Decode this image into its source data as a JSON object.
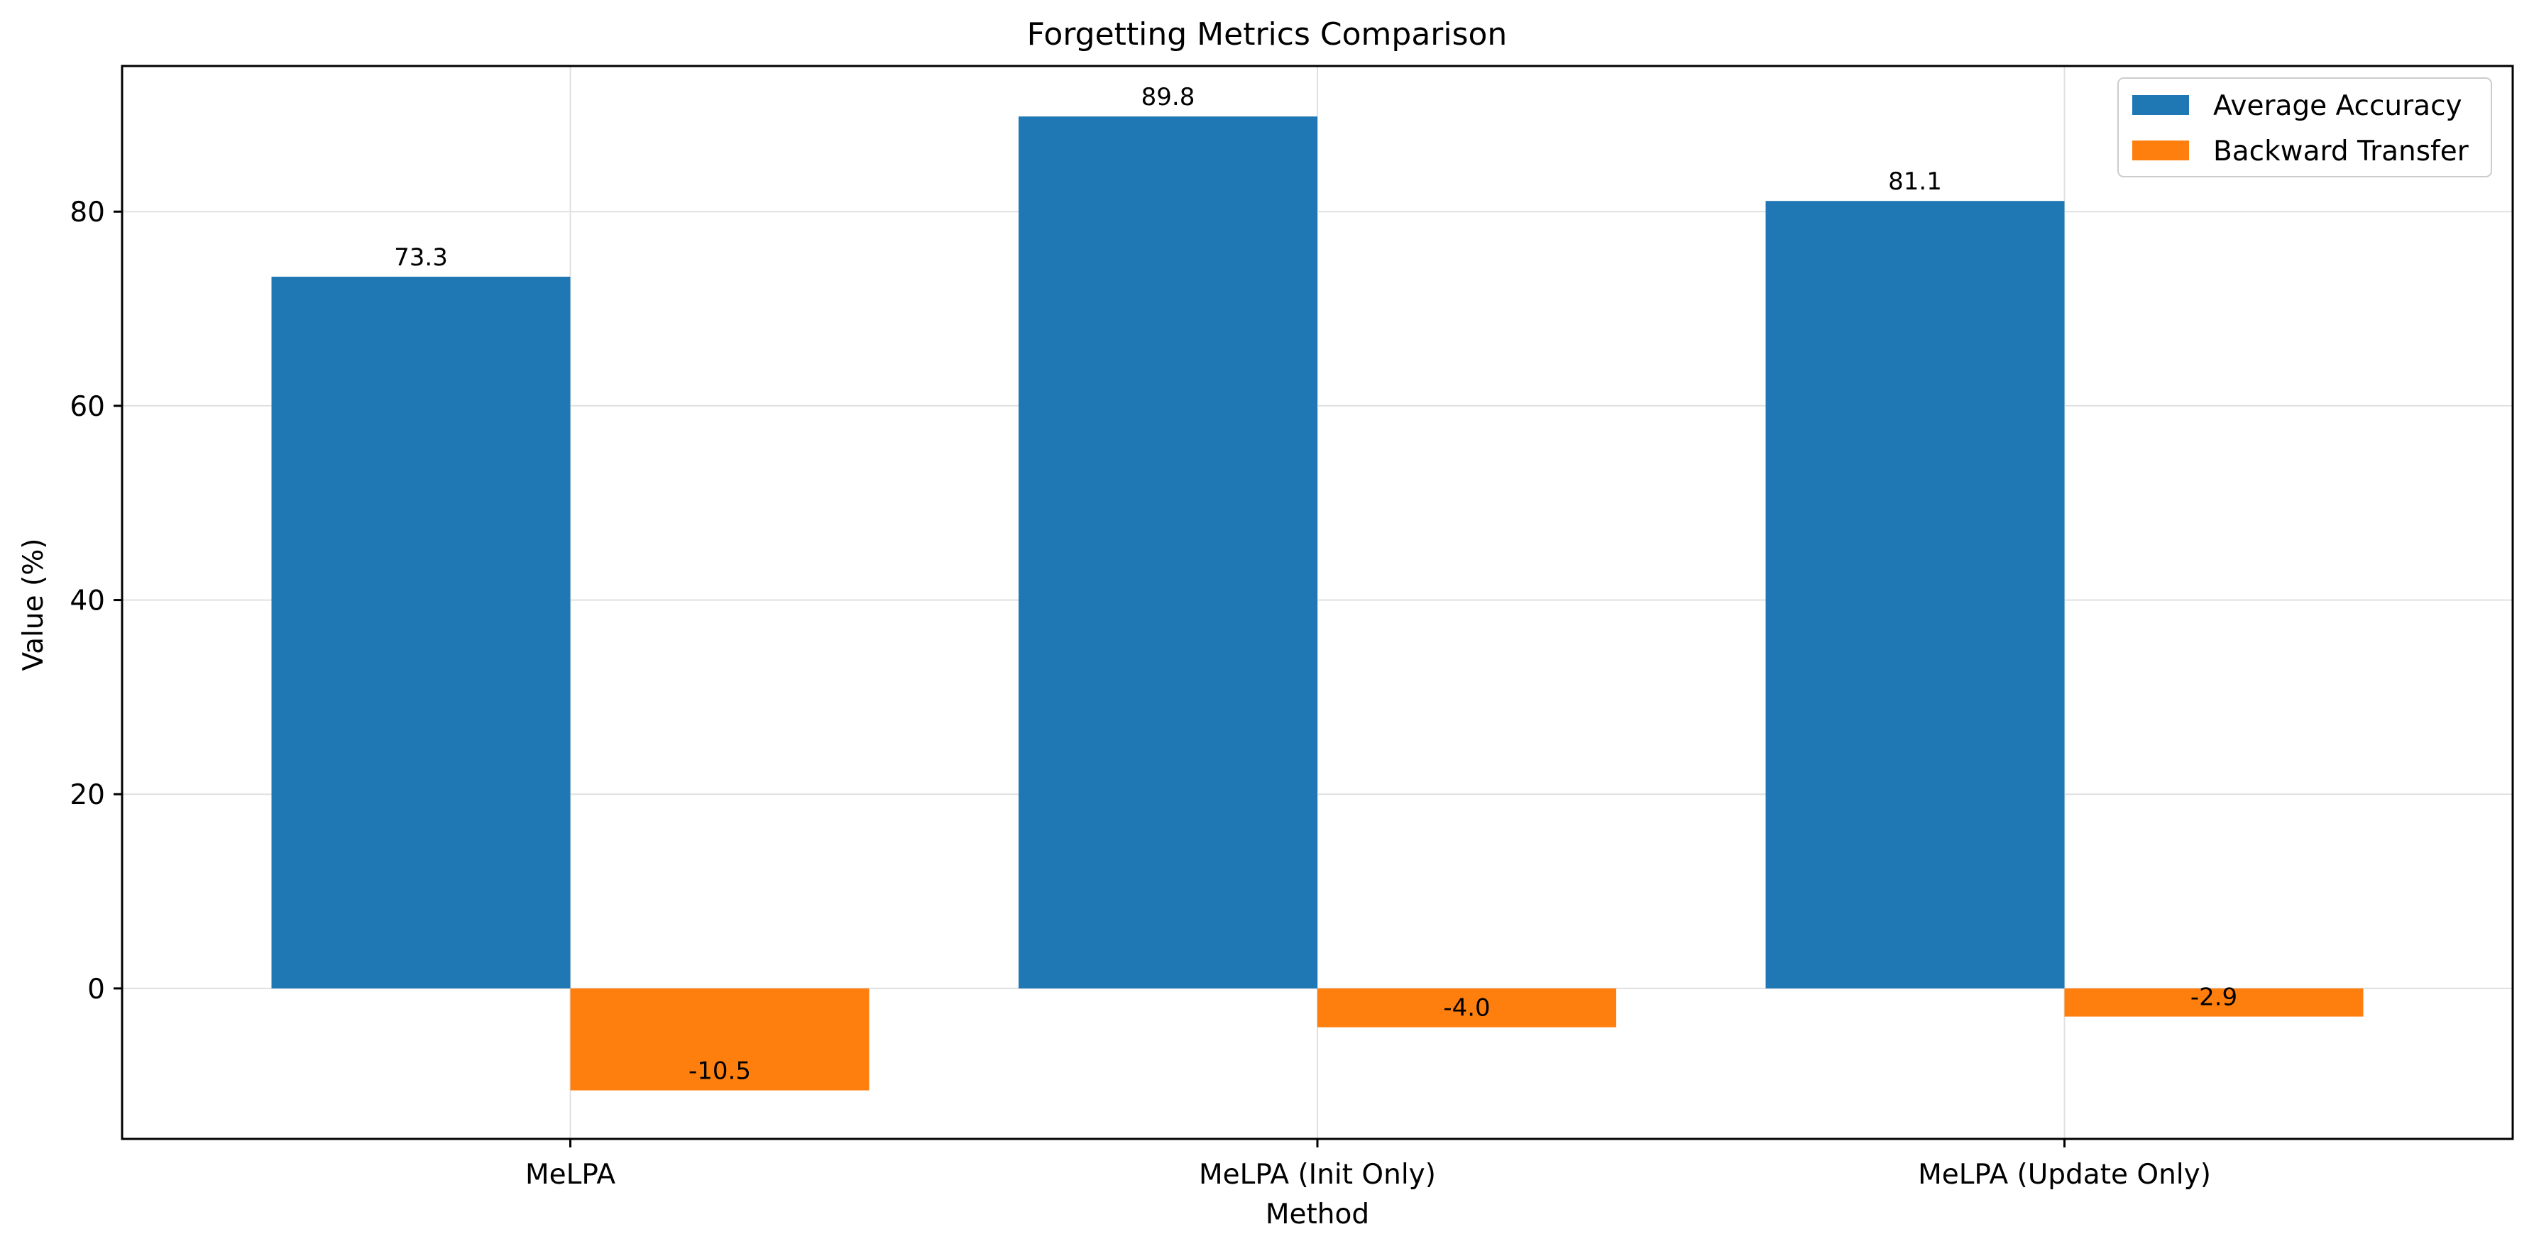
{
  "chart_data": {
    "type": "bar",
    "title": "Forgetting Metrics Comparison",
    "xlabel": "Method",
    "ylabel": "Value (%)",
    "categories": [
      "MeLPA",
      "MeLPA (Init Only)",
      "MeLPA (Update Only)"
    ],
    "series": [
      {
        "name": "Average Accuracy",
        "color": "#1f77b4",
        "values": [
          73.3,
          89.8,
          81.1
        ],
        "labels": [
          "73.3",
          "89.8",
          "81.1"
        ]
      },
      {
        "name": "Backward Transfer",
        "color": "#ff7f0e",
        "values": [
          -10.5,
          -4.0,
          -2.9
        ],
        "labels": [
          "-10.5",
          "-4.0",
          "-2.9"
        ]
      }
    ],
    "ylim": [
      -15.5,
      95.0
    ],
    "yticks": [
      0,
      20,
      40,
      60,
      80
    ],
    "ytick_labels": [
      "0",
      "20",
      "40",
      "60",
      "80"
    ],
    "grid": true,
    "legend_position": "top-right"
  }
}
